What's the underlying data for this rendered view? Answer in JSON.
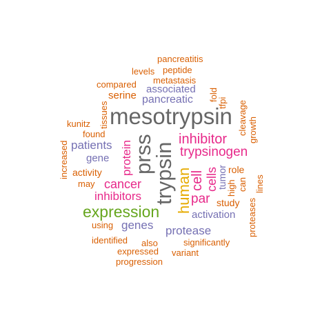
{
  "colors": {
    "orange": "#d95f02",
    "purple": "#7570b3",
    "magenta": "#e7298a",
    "green": "#66a61e",
    "gold": "#e6ab02",
    "gray": "#666666"
  },
  "words": {
    "pancreatitis": "pancreatitis",
    "peptide": "peptide",
    "levels": "levels",
    "metastasis": "metastasis",
    "compared": "compared",
    "associated": "associated",
    "serine": "serine",
    "pancreatic": "pancreatic",
    "fold": "fold",
    "tfpi": "tfpi",
    "tissues": "tissues",
    "mesotrypsin": "mesotrypsin",
    "cleavage": "cleavage",
    "growth": "growth",
    "kunitz": "kunitz",
    "found": "found",
    "prss": "prss",
    "trypsin": "trypsin",
    "inhibitor": "inhibitor",
    "increased": "increased",
    "patients": "patients",
    "protein": "protein",
    "trypsinogen": "trypsinogen",
    "gene": "gene",
    "activity": "activity",
    "human": "human",
    "cell": "cell",
    "cells": "cells",
    "tumor": "tumor",
    "role": "role",
    "may": "may",
    "cancer": "cancer",
    "high": "high",
    "can": "can",
    "lines": "lines",
    "inhibitors": "inhibitors",
    "par": "par",
    "proteases": "proteases",
    "study": "study",
    "expression": "expression",
    "activation": "activation",
    "using": "using",
    "genes": "genes",
    "protease": "protease",
    "identified": "identified",
    "also": "also",
    "significantly": "significantly",
    "expressed": "expressed",
    "variant": "variant",
    "progression": "progression"
  }
}
